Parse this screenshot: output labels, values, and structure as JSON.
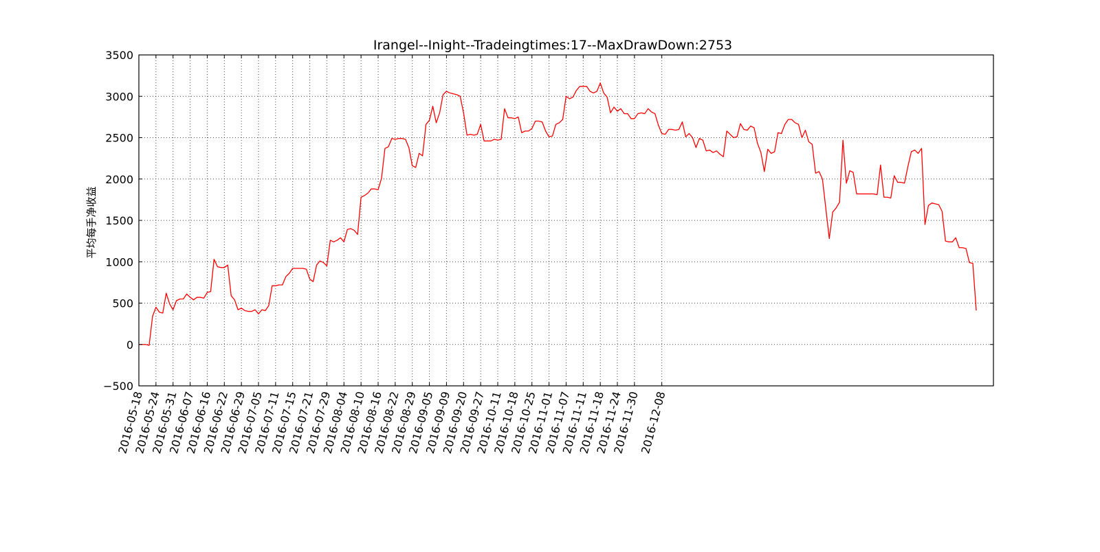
{
  "chart_data": {
    "type": "line",
    "title": "Irangel--Inight--Tradeingtimes:17--MaxDrawDown:2753",
    "xlabel": "",
    "ylabel": "平均每手净收益",
    "ylim": [
      -500,
      3500
    ],
    "yticks": [
      "−500",
      "0",
      "500",
      "1000",
      "1500",
      "2000",
      "2500",
      "3000",
      "3500"
    ],
    "grid": true,
    "legend": "none",
    "xtick_labels": [
      "2016-05-18",
      "2016-05-24",
      "2016-05-31",
      "2016-06-07",
      "2016-06-16",
      "2016-06-22",
      "2016-06-29",
      "2016-07-05",
      "2016-07-11",
      "2016-07-15",
      "2016-07-21",
      "2016-07-29",
      "2016-08-04",
      "2016-08-10",
      "2016-08-16",
      "2016-08-22",
      "2016-08-29",
      "2016-09-05",
      "2016-09-09",
      "2016-09-20",
      "2016-09-27",
      "2016-10-11",
      "2016-10-18",
      "2016-10-25",
      "2016-11-01",
      "2016-11-07",
      "2016-11-11",
      "2016-11-18",
      "2016-11-24",
      "2016-11-30",
      "2016-12-08"
    ],
    "xtick_index": [
      0,
      5,
      10,
      15,
      20,
      25,
      30,
      35,
      40,
      45,
      50,
      55,
      60,
      65,
      70,
      75,
      80,
      85,
      90,
      95,
      100,
      105,
      110,
      115,
      120,
      125,
      130,
      135,
      140,
      145,
      153
    ],
    "series": [
      {
        "color": "#ff0000",
        "values": [
          0,
          0,
          0,
          -10,
          340,
          450,
          390,
          380,
          620,
          490,
          420,
          530,
          550,
          550,
          610,
          570,
          540,
          570,
          570,
          560,
          630,
          640,
          1030,
          940,
          930,
          930,
          960,
          590,
          540,
          420,
          440,
          410,
          400,
          400,
          420,
          370,
          420,
          410,
          470,
          710,
          710,
          720,
          720,
          820,
          860,
          920,
          920,
          920,
          920,
          910,
          790,
          760,
          960,
          1010,
          990,
          950,
          1260,
          1240,
          1260,
          1290,
          1240,
          1390,
          1400,
          1380,
          1330,
          1780,
          1800,
          1830,
          1880,
          1880,
          1870,
          2010,
          2370,
          2390,
          2490,
          2480,
          2490,
          2490,
          2480,
          2380,
          2160,
          2140,
          2310,
          2280,
          2660,
          2710,
          2880,
          2680,
          2800,
          3020,
          3060,
          3040,
          3030,
          3020,
          3000,
          2800,
          2530,
          2540,
          2530,
          2540,
          2660,
          2460,
          2460,
          2460,
          2480,
          2470,
          2480,
          2850,
          2740,
          2740,
          2730,
          2750,
          2560,
          2580,
          2580,
          2610,
          2700,
          2700,
          2690,
          2580,
          2510,
          2520,
          2660,
          2680,
          2720,
          3000,
          2970,
          2990,
          3070,
          3120,
          3120,
          3120,
          3060,
          3040,
          3060,
          3160,
          3040,
          2990,
          2800,
          2870,
          2820,
          2850,
          2790,
          2790,
          2730,
          2730,
          2790,
          2800,
          2790,
          2850,
          2810,
          2790,
          2650,
          2550,
          2540,
          2600,
          2600,
          2590,
          2600,
          2690,
          2510,
          2550,
          2500,
          2380,
          2490,
          2470,
          2340,
          2350,
          2320,
          2340,
          2300,
          2270,
          2580,
          2540,
          2500,
          2510,
          2670,
          2600,
          2590,
          2640,
          2620,
          2430,
          2320,
          2090,
          2360,
          2310,
          2330,
          2560,
          2550,
          2660,
          2720,
          2720,
          2680,
          2660,
          2500,
          2590,
          2450,
          2420,
          2070,
          2090,
          2000,
          1640,
          1280,
          1600,
          1650,
          1720,
          2470,
          1950,
          2100,
          2080,
          1820,
          1820,
          1820,
          1820,
          1820,
          1820,
          1810,
          2170,
          1780,
          1780,
          1770,
          2040,
          1960,
          1960,
          1950,
          2150,
          2330,
          2350,
          2310,
          2370,
          1450,
          1680,
          1710,
          1700,
          1690,
          1610,
          1250,
          1240,
          1240,
          1290,
          1170,
          1170,
          1160,
          990,
          980,
          410
        ]
      }
    ]
  }
}
